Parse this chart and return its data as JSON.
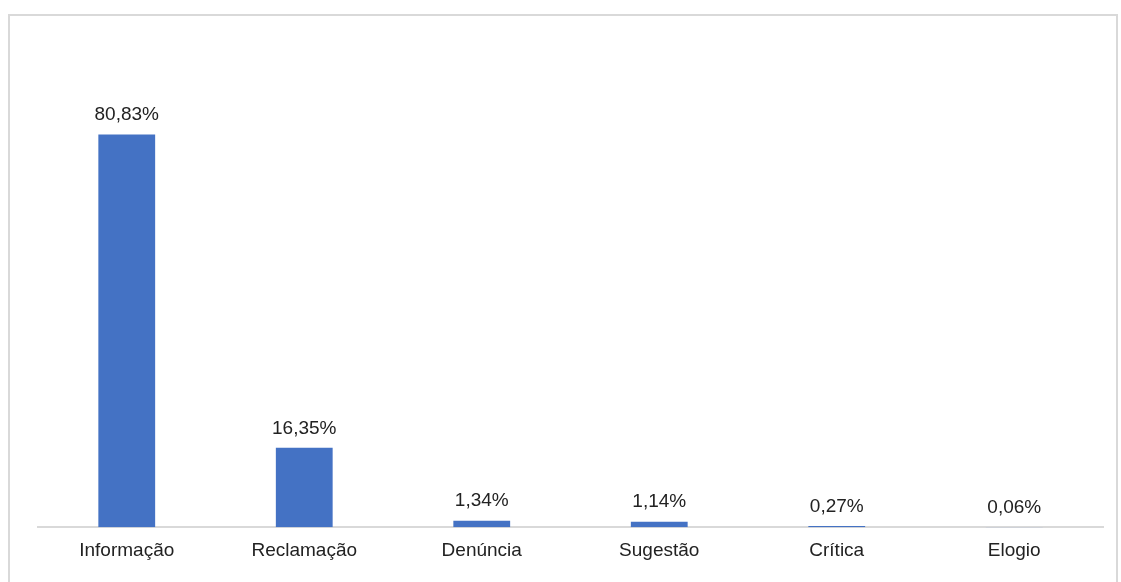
{
  "chart_data": {
    "type": "bar",
    "categories": [
      "Informação",
      "Reclamação",
      "Denúncia",
      "Sugestão",
      "Crítica",
      "Elogio"
    ],
    "values": [
      80.83,
      16.35,
      1.34,
      1.14,
      0.27,
      0.06
    ],
    "value_labels": [
      "80,83%",
      "16,35%",
      "1,34%",
      "1,14%",
      "0,27%",
      "0,06%"
    ],
    "color": "#4472c4",
    "grid": false,
    "legend": false
  }
}
